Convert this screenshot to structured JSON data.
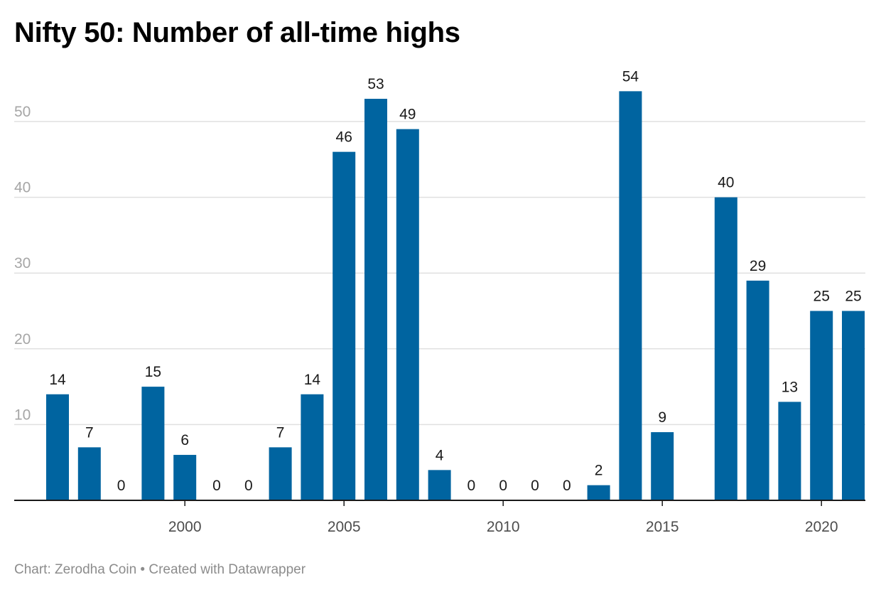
{
  "chart_data": {
    "type": "bar",
    "title": "Nifty 50: Number of all-time highs",
    "xlabel": "",
    "ylabel": "",
    "categories": [
      "1996",
      "1997",
      "1998",
      "1999",
      "2000",
      "2001",
      "2002",
      "2003",
      "2004",
      "2005",
      "2006",
      "2007",
      "2008",
      "2009",
      "2010",
      "2011",
      "2012",
      "2013",
      "2014",
      "2015",
      "2016",
      "2017",
      "2018",
      "2019",
      "2020",
      "2021"
    ],
    "values": [
      14,
      7,
      0,
      15,
      6,
      0,
      0,
      7,
      14,
      46,
      53,
      49,
      4,
      0,
      0,
      0,
      0,
      2,
      54,
      9,
      null,
      40,
      29,
      13,
      25,
      25
    ],
    "x_ticks": [
      "2000",
      "2005",
      "2010",
      "2015",
      "2020"
    ],
    "y_ticks": [
      10,
      20,
      30,
      40,
      50
    ],
    "ylim": [
      0,
      56
    ],
    "grid": true,
    "bar_color": "#0064a0",
    "data_labels": true
  },
  "footer": "Chart: Zerodha Coin • Created with Datawrapper"
}
